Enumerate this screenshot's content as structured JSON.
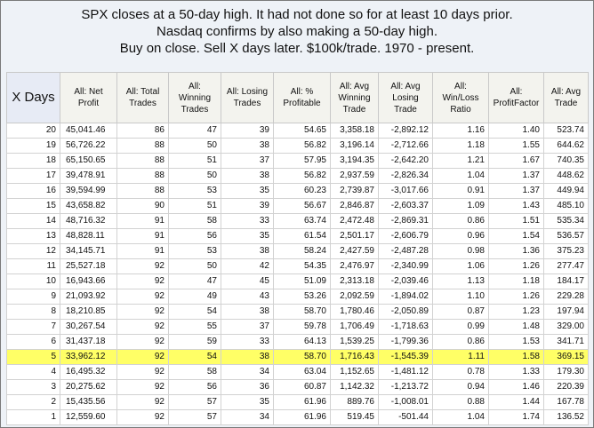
{
  "header": {
    "lines": [
      "SPX closes at a 50-day high.  It had not done so for at least 10 days prior.",
      "Nasdaq confirms by also making a 50-day high.",
      "Buy on close. Sell X days later.  $100k/trade. 1970 - present."
    ]
  },
  "table": {
    "columns": [
      "X Days",
      "All: Net Profit",
      "All: Total Trades",
      "All: Winning Trades",
      "All: Losing Trades",
      "All: % Profitable",
      "All: Avg Winning Trade",
      "All: Avg Losing Trade",
      "All: Win/Loss Ratio",
      "All: ProfitFactor",
      "All: Avg Trade"
    ],
    "highlight_color": "#ffff66",
    "highlighted_row": "5",
    "rows": [
      [
        "20",
        "45,041.46",
        "86",
        "47",
        "39",
        "54.65",
        "3,358.18",
        "-2,892.12",
        "1.16",
        "1.40",
        "523.74"
      ],
      [
        "19",
        "56,726.22",
        "88",
        "50",
        "38",
        "56.82",
        "3,196.14",
        "-2,712.66",
        "1.18",
        "1.55",
        "644.62"
      ],
      [
        "18",
        "65,150.65",
        "88",
        "51",
        "37",
        "57.95",
        "3,194.35",
        "-2,642.20",
        "1.21",
        "1.67",
        "740.35"
      ],
      [
        "17",
        "39,478.91",
        "88",
        "50",
        "38",
        "56.82",
        "2,937.59",
        "-2,826.34",
        "1.04",
        "1.37",
        "448.62"
      ],
      [
        "16",
        "39,594.99",
        "88",
        "53",
        "35",
        "60.23",
        "2,739.87",
        "-3,017.66",
        "0.91",
        "1.37",
        "449.94"
      ],
      [
        "15",
        "43,658.82",
        "90",
        "51",
        "39",
        "56.67",
        "2,846.87",
        "-2,603.37",
        "1.09",
        "1.43",
        "485.10"
      ],
      [
        "14",
        "48,716.32",
        "91",
        "58",
        "33",
        "63.74",
        "2,472.48",
        "-2,869.31",
        "0.86",
        "1.51",
        "535.34"
      ],
      [
        "13",
        "48,828.11",
        "91",
        "56",
        "35",
        "61.54",
        "2,501.17",
        "-2,606.79",
        "0.96",
        "1.54",
        "536.57"
      ],
      [
        "12",
        "34,145.71",
        "91",
        "53",
        "38",
        "58.24",
        "2,427.59",
        "-2,487.28",
        "0.98",
        "1.36",
        "375.23"
      ],
      [
        "11",
        "25,527.18",
        "92",
        "50",
        "42",
        "54.35",
        "2,476.97",
        "-2,340.99",
        "1.06",
        "1.26",
        "277.47"
      ],
      [
        "10",
        "16,943.66",
        "92",
        "47",
        "45",
        "51.09",
        "2,313.18",
        "-2,039.46",
        "1.13",
        "1.18",
        "184.17"
      ],
      [
        "9",
        "21,093.92",
        "92",
        "49",
        "43",
        "53.26",
        "2,092.59",
        "-1,894.02",
        "1.10",
        "1.26",
        "229.28"
      ],
      [
        "8",
        "18,210.85",
        "92",
        "54",
        "38",
        "58.70",
        "1,780.46",
        "-2,050.89",
        "0.87",
        "1.23",
        "197.94"
      ],
      [
        "7",
        "30,267.54",
        "92",
        "55",
        "37",
        "59.78",
        "1,706.49",
        "-1,718.63",
        "0.99",
        "1.48",
        "329.00"
      ],
      [
        "6",
        "31,437.18",
        "92",
        "59",
        "33",
        "64.13",
        "1,539.25",
        "-1,799.36",
        "0.86",
        "1.53",
        "341.71"
      ],
      [
        "5",
        "33,962.12",
        "92",
        "54",
        "38",
        "58.70",
        "1,716.43",
        "-1,545.39",
        "1.11",
        "1.58",
        "369.15"
      ],
      [
        "4",
        "16,495.32",
        "92",
        "58",
        "34",
        "63.04",
        "1,152.65",
        "-1,481.12",
        "0.78",
        "1.33",
        "179.30"
      ],
      [
        "3",
        "20,275.62",
        "92",
        "56",
        "36",
        "60.87",
        "1,142.32",
        "-1,213.72",
        "0.94",
        "1.46",
        "220.39"
      ],
      [
        "2",
        "15,435.56",
        "92",
        "57",
        "35",
        "61.96",
        "889.76",
        "-1,008.01",
        "0.88",
        "1.44",
        "167.78"
      ],
      [
        "1",
        "12,559.60",
        "92",
        "57",
        "34",
        "61.96",
        "519.45",
        "-501.44",
        "1.04",
        "1.74",
        "136.52"
      ]
    ],
    "column_colors": [
      "black",
      "green",
      "black",
      "black",
      "green",
      "black",
      "green",
      "red",
      "black",
      "black",
      "green"
    ]
  }
}
